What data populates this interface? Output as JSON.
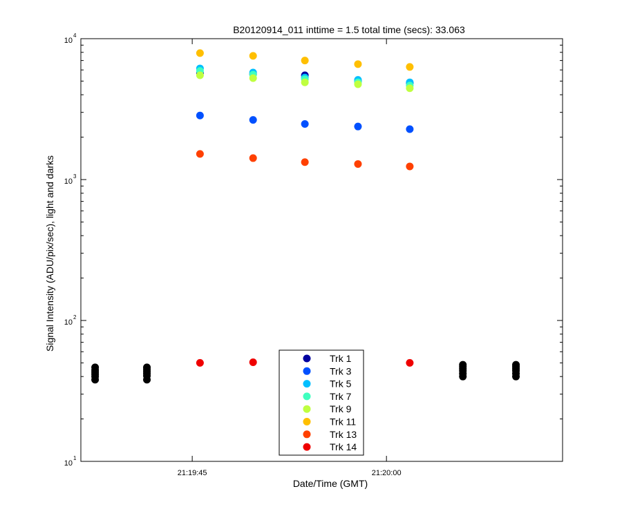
{
  "chart_data": {
    "type": "scatter",
    "title": "B20120914_011 inttime = 1.5 total time (secs): 33.063",
    "xlabel": "Date/Time (GMT)",
    "ylabel": "Signal Intensity (ADU/pix/sec), light and darks",
    "y_scale": "log",
    "ylim": [
      10,
      10000
    ],
    "xlim": [
      "21:19:36.4",
      "21:20:13.6"
    ],
    "y_ticks": [
      {
        "value": 10,
        "base": "10",
        "exp": "1"
      },
      {
        "value": 100,
        "base": "10",
        "exp": "2"
      },
      {
        "value": 1000,
        "base": "10",
        "exp": "3"
      },
      {
        "value": 10000,
        "base": "10",
        "exp": "4"
      }
    ],
    "x_ticks": [
      {
        "value": "21:19:45",
        "label": "21:19:45"
      },
      {
        "value": "21:20:00",
        "label": "21:20:00"
      }
    ],
    "grid": false,
    "legend_position": "bottom-center",
    "series": [
      {
        "name": "Trk 1",
        "color": "#00009f",
        "points": [
          [
            "21:19:45.6",
            5700
          ],
          [
            "21:19:49.7",
            5600
          ],
          [
            "21:19:53.7",
            5500
          ],
          [
            "21:19:57.8",
            5000
          ],
          [
            "21:20:01.8",
            4850
          ]
        ]
      },
      {
        "name": "Trk 3",
        "color": "#0050ff",
        "points": [
          [
            "21:19:45.6",
            2850
          ],
          [
            "21:19:49.7",
            2650
          ],
          [
            "21:19:53.7",
            2480
          ],
          [
            "21:19:57.8",
            2380
          ],
          [
            "21:20:01.8",
            2280
          ]
        ]
      },
      {
        "name": "Trk 5",
        "color": "#00bfff",
        "points": [
          [
            "21:19:45.6",
            6150
          ],
          [
            "21:19:49.7",
            5750
          ],
          [
            "21:19:53.7",
            5300
          ],
          [
            "21:19:57.8",
            5100
          ],
          [
            "21:20:01.8",
            4900
          ]
        ]
      },
      {
        "name": "Trk 7",
        "color": "#40ffbf",
        "points": [
          [
            "21:19:45.6",
            5900
          ],
          [
            "21:19:49.7",
            5550
          ],
          [
            "21:19:53.7",
            5150
          ],
          [
            "21:19:57.8",
            4900
          ],
          [
            "21:20:01.8",
            4650
          ]
        ]
      },
      {
        "name": "Trk 9",
        "color": "#bfff40",
        "points": [
          [
            "21:19:45.6",
            5500
          ],
          [
            "21:19:49.7",
            5250
          ],
          [
            "21:19:53.7",
            4900
          ],
          [
            "21:19:57.8",
            4750
          ],
          [
            "21:20:01.8",
            4450
          ]
        ]
      },
      {
        "name": "Trk 11",
        "color": "#ffbf00",
        "points": [
          [
            "21:19:45.6",
            7900
          ],
          [
            "21:19:49.7",
            7550
          ],
          [
            "21:19:53.7",
            7000
          ],
          [
            "21:19:57.8",
            6600
          ],
          [
            "21:20:01.8",
            6300
          ]
        ]
      },
      {
        "name": "Trk 13",
        "color": "#ff4000",
        "points": [
          [
            "21:19:45.6",
            1520
          ],
          [
            "21:19:49.7",
            1420
          ],
          [
            "21:19:53.7",
            1330
          ],
          [
            "21:19:57.8",
            1290
          ],
          [
            "21:20:01.8",
            1240
          ]
        ]
      },
      {
        "name": "Trk 14",
        "color": "#ef0000",
        "points": [
          [
            "21:19:45.6",
            50
          ],
          [
            "21:19:49.7",
            50.5
          ],
          [
            "21:19:53.7",
            50
          ],
          [
            "21:19:57.8",
            50
          ],
          [
            "21:20:01.8",
            50
          ]
        ]
      }
    ],
    "dark_frames": {
      "color": "#000000",
      "points": [
        [
          "21:19:37.5",
          46.5
        ],
        [
          "21:19:37.5",
          44.5
        ],
        [
          "21:19:37.5",
          43
        ],
        [
          "21:19:37.5",
          41.5
        ],
        [
          "21:19:37.5",
          40
        ],
        [
          "21:19:37.5",
          38
        ],
        [
          "21:19:41.5",
          46.5
        ],
        [
          "21:19:41.5",
          45
        ],
        [
          "21:19:41.5",
          43.5
        ],
        [
          "21:19:41.5",
          42
        ],
        [
          "21:19:41.5",
          40.5
        ],
        [
          "21:19:41.5",
          38
        ],
        [
          "21:20:05.9",
          48.5
        ],
        [
          "21:20:05.9",
          47
        ],
        [
          "21:20:05.9",
          45.5
        ],
        [
          "21:20:05.9",
          44
        ],
        [
          "21:20:05.9",
          42
        ],
        [
          "21:20:05.9",
          40
        ],
        [
          "21:20:10.0",
          48.5
        ],
        [
          "21:20:10.0",
          47
        ],
        [
          "21:20:10.0",
          45.5
        ],
        [
          "21:20:10.0",
          44
        ],
        [
          "21:20:10.0",
          42
        ],
        [
          "21:20:10.0",
          40
        ]
      ]
    }
  }
}
